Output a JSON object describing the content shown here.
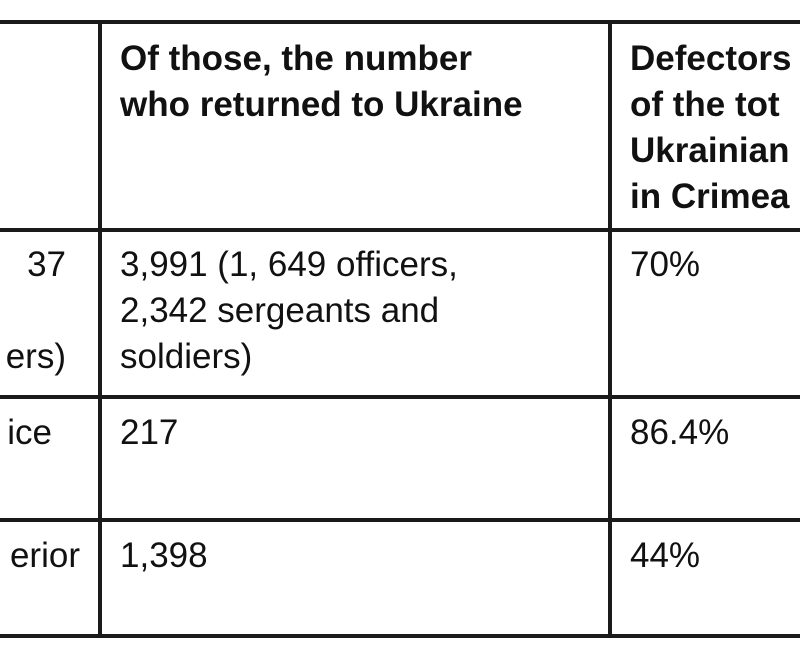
{
  "table": {
    "headers": [
      "",
      "Of those, the number\nwho returned to Ukraine",
      "Defectors\nof the tot\nUkrainian\nin Crimea"
    ],
    "rows": [
      {
        "category": "37\n\ners)",
        "returned": "3,991 (1, 649 officers,\n2,342 sergeants and\nsoldiers)",
        "defectors": "70%"
      },
      {
        "category": "ice",
        "returned": "217",
        "defectors": "86.4%"
      },
      {
        "category": "erior",
        "returned": "1,398",
        "defectors": "44%"
      }
    ]
  }
}
